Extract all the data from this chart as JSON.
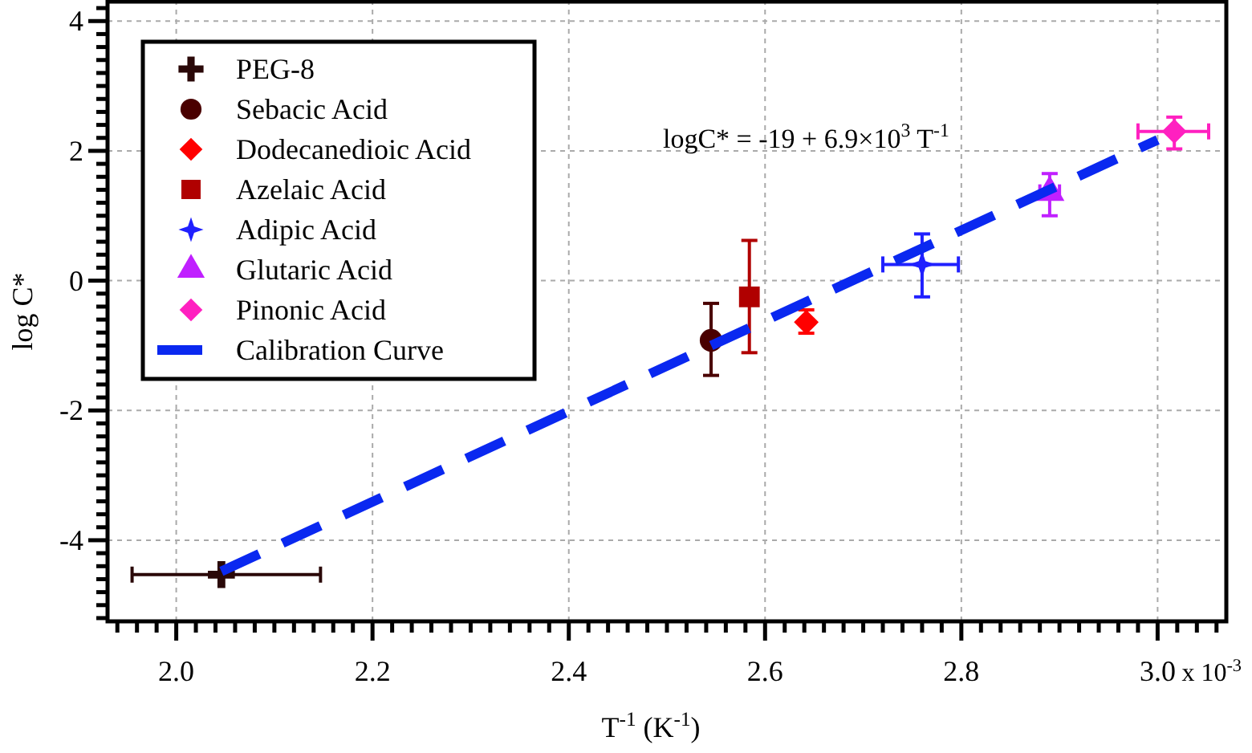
{
  "chart_data": {
    "type": "scatter",
    "xlabel": "T$^{-1}$ (K$^{-1}$)",
    "ylabel": "log C*",
    "annotations": [
      "logC* = -19 + 6.9×10$^{3}$ T$^{-1}$",
      "x 10$^{-3}$"
    ],
    "xlim": [
      1.93,
      3.07
    ],
    "ylim": [
      -5.25,
      4.3
    ],
    "xticks": [
      {
        "value": 1.94,
        "label": null
      },
      {
        "value": 1.96,
        "label": null
      },
      {
        "value": 1.98,
        "label": null
      },
      {
        "value": 2.0,
        "label": "2.0"
      },
      {
        "value": 2.02,
        "label": null
      },
      {
        "value": 2.04,
        "label": null
      },
      {
        "value": 2.06,
        "label": null
      },
      {
        "value": 2.08,
        "label": null
      },
      {
        "value": 2.1,
        "label": null
      },
      {
        "value": 2.12,
        "label": null
      },
      {
        "value": 2.14,
        "label": null
      },
      {
        "value": 2.16,
        "label": null
      },
      {
        "value": 2.18,
        "label": null
      },
      {
        "value": 2.2,
        "label": "2.2"
      },
      {
        "value": 2.22,
        "label": null
      },
      {
        "value": 2.24,
        "label": null
      },
      {
        "value": 2.26,
        "label": null
      },
      {
        "value": 2.28,
        "label": null
      },
      {
        "value": 2.3,
        "label": null
      },
      {
        "value": 2.32,
        "label": null
      },
      {
        "value": 2.34,
        "label": null
      },
      {
        "value": 2.36,
        "label": null
      },
      {
        "value": 2.38,
        "label": null
      },
      {
        "value": 2.4,
        "label": "2.4"
      },
      {
        "value": 2.42,
        "label": null
      },
      {
        "value": 2.44,
        "label": null
      },
      {
        "value": 2.46,
        "label": null
      },
      {
        "value": 2.48,
        "label": null
      },
      {
        "value": 2.5,
        "label": null
      },
      {
        "value": 2.52,
        "label": null
      },
      {
        "value": 2.54,
        "label": null
      },
      {
        "value": 2.56,
        "label": null
      },
      {
        "value": 2.58,
        "label": null
      },
      {
        "value": 2.6,
        "label": "2.6"
      },
      {
        "value": 2.62,
        "label": null
      },
      {
        "value": 2.64,
        "label": null
      },
      {
        "value": 2.66,
        "label": null
      },
      {
        "value": 2.68,
        "label": null
      },
      {
        "value": 2.7,
        "label": null
      },
      {
        "value": 2.72,
        "label": null
      },
      {
        "value": 2.74,
        "label": null
      },
      {
        "value": 2.76,
        "label": null
      },
      {
        "value": 2.78,
        "label": null
      },
      {
        "value": 2.8,
        "label": "2.8"
      },
      {
        "value": 2.82,
        "label": null
      },
      {
        "value": 2.84,
        "label": null
      },
      {
        "value": 2.86,
        "label": null
      },
      {
        "value": 2.88,
        "label": null
      },
      {
        "value": 2.9,
        "label": null
      },
      {
        "value": 2.92,
        "label": null
      },
      {
        "value": 2.94,
        "label": null
      },
      {
        "value": 2.96,
        "label": null
      },
      {
        "value": 2.98,
        "label": null
      },
      {
        "value": 3.0,
        "label": "3.0"
      },
      {
        "value": 3.02,
        "label": null
      },
      {
        "value": 3.04,
        "label": null
      },
      {
        "value": 3.06,
        "label": null
      }
    ],
    "yticks": [
      {
        "value": -5.2,
        "label": null
      },
      {
        "value": -5.0,
        "label": null
      },
      {
        "value": -4.8,
        "label": null
      },
      {
        "value": -4.6,
        "label": null
      },
      {
        "value": -4.4,
        "label": null
      },
      {
        "value": -4.2,
        "label": null
      },
      {
        "value": -4,
        "label": "-4"
      },
      {
        "value": -3.8,
        "label": null
      },
      {
        "value": -3.6,
        "label": null
      },
      {
        "value": -3.4,
        "label": null
      },
      {
        "value": -3.2,
        "label": null
      },
      {
        "value": -3.0,
        "label": null
      },
      {
        "value": -2.8,
        "label": null
      },
      {
        "value": -2.6,
        "label": null
      },
      {
        "value": -2.4,
        "label": null
      },
      {
        "value": -2.2,
        "label": null
      },
      {
        "value": -2,
        "label": "-2"
      },
      {
        "value": -1.8,
        "label": null
      },
      {
        "value": -1.6,
        "label": null
      },
      {
        "value": -1.4,
        "label": null
      },
      {
        "value": -1.2,
        "label": null
      },
      {
        "value": -1.0,
        "label": null
      },
      {
        "value": -0.8,
        "label": null
      },
      {
        "value": -0.6,
        "label": null
      },
      {
        "value": -0.4,
        "label": null
      },
      {
        "value": -0.2,
        "label": null
      },
      0,
      {
        "value": 0.2,
        "label": null
      },
      {
        "value": 0.4,
        "label": null
      },
      {
        "value": 0.6,
        "label": null
      },
      {
        "value": 0.8,
        "label": null
      },
      {
        "value": 1.0,
        "label": null
      },
      {
        "value": 1.2,
        "label": null
      },
      {
        "value": 1.4,
        "label": null
      },
      {
        "value": 1.6,
        "label": null
      },
      {
        "value": 1.8,
        "label": null
      },
      2,
      {
        "value": 2.2,
        "label": null
      },
      {
        "value": 2.4,
        "label": null
      },
      {
        "value": 2.6,
        "label": null
      },
      {
        "value": 2.8,
        "label": null
      },
      {
        "value": 3.0,
        "label": null
      },
      {
        "value": 3.2,
        "label": null
      },
      {
        "value": 3.4,
        "label": null
      },
      {
        "value": 3.6,
        "label": null
      },
      {
        "value": 3.8,
        "label": null
      },
      4,
      {
        "value": 4.2,
        "label": null
      }
    ],
    "grid": true,
    "legend": "top left",
    "series": [
      {
        "name": "PEG-8",
        "color": "#2a0808",
        "marker": "cross",
        "x": [
          2.046
        ],
        "values": [
          -4.53
        ],
        "xerrors": [
          [
            1.955,
            2.147
          ]
        ]
      },
      {
        "name": "Sebacic Acid",
        "color": "#4a0000",
        "marker": "circle",
        "x": [
          2.545
        ],
        "values": [
          -0.92
        ],
        "errors": [
          [
            -1.46,
            -0.35
          ]
        ]
      },
      {
        "name": "Dodecanedioic Acid",
        "color": "#ff0000",
        "marker": "diamond",
        "x": [
          2.642
        ],
        "values": [
          -0.64
        ],
        "errors": [
          [
            -0.81,
            -0.45
          ]
        ]
      },
      {
        "name": "Azelaic Acid",
        "color": "#b00000",
        "marker": "square",
        "x": [
          2.584
        ],
        "values": [
          -0.25
        ],
        "errors": [
          [
            -1.11,
            0.62
          ]
        ]
      },
      {
        "name": "Adipic Acid",
        "color": "#2020ff",
        "marker": "star",
        "x": [
          2.76
        ],
        "values": [
          0.25
        ],
        "errors": [
          [
            -0.25,
            0.72
          ]
        ],
        "xerrors": [
          [
            2.72,
            2.797
          ]
        ]
      },
      {
        "name": "Glutaric Acid",
        "color": "#c020ff",
        "marker": "triangle",
        "x": [
          2.89
        ],
        "values": [
          1.36
        ],
        "errors": [
          [
            1.0,
            1.65
          ]
        ],
        "xerrors": [
          [
            2.88,
            2.9
          ]
        ]
      },
      {
        "name": "Pinonic Acid",
        "color": "#ff20c0",
        "marker": "diamond",
        "x": [
          3.017
        ],
        "values": [
          2.3
        ],
        "errors": [
          [
            2.03,
            2.52
          ]
        ],
        "xerrors": [
          [
            2.98,
            3.052
          ]
        ]
      },
      {
        "name": "Calibration Curve",
        "type": "line",
        "color": "#0a28f0",
        "line_style": "dashed",
        "marker": "none",
        "x": [
          2.046,
          3.0
        ],
        "values": [
          -4.48,
          2.17
        ]
      }
    ]
  }
}
